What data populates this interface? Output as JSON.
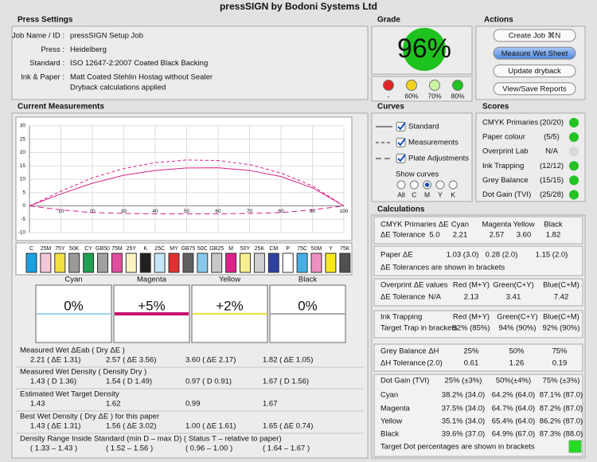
{
  "title": "pressSIGN by Bodoni Systems Ltd",
  "press_settings": {
    "title": "Press Settings",
    "rows": [
      {
        "label": "Job Name / ID :",
        "value": "pressSIGN Setup Job"
      },
      {
        "label": "Press :",
        "value": "Heidelberg"
      },
      {
        "label": "Standard :",
        "value": "ISO 12647-2:2007 Coated Black Backing"
      },
      {
        "label": "Ink & Paper :",
        "value": "Matt Coated Stehlin Hostag without Sealer"
      }
    ],
    "note": "Dryback calculations applied"
  },
  "grade": {
    "title": "Grade",
    "value": "96%",
    "color": "#1ec21e",
    "levels": [
      {
        "label": "-",
        "color": "#e32222"
      },
      {
        "label": "60%",
        "color": "#f5d21a"
      },
      {
        "label": "70%",
        "color": "#c9f5a3"
      },
      {
        "label": "80%",
        "color": "#22c322"
      }
    ]
  },
  "actions": {
    "title": "Actions",
    "buttons": [
      "Create Job ⌘N",
      "Measure Wet Sheet",
      "Update dryback",
      "View/Save Reports"
    ],
    "default_button": 1
  },
  "measurements": {
    "title": "Current Measurements",
    "chart": {
      "type": "line",
      "xlim": [
        0,
        100
      ],
      "ylim": [
        -10,
        30
      ],
      "xticks": [
        10,
        20,
        30,
        40,
        50,
        60,
        70,
        80,
        90,
        100
      ],
      "yticks": [
        30,
        25,
        20,
        15,
        10,
        5,
        0,
        -5,
        -10
      ],
      "grid": true,
      "x": [
        0,
        10,
        20,
        30,
        40,
        50,
        60,
        70,
        80,
        90,
        100
      ],
      "series": [
        {
          "color": "#d6228a",
          "dash": "solid",
          "values": [
            0,
            4.5,
            8.5,
            11.5,
            13.3,
            14.2,
            14.3,
            13.3,
            11,
            6.8,
            0
          ]
        },
        {
          "color": "#d6228a",
          "dash": "dashed",
          "values": [
            0,
            5.5,
            10.5,
            14,
            16.2,
            17.2,
            17,
            15.5,
            12.3,
            7.5,
            0
          ]
        },
        {
          "color": "#d6228a",
          "dash": "dashdot",
          "values": [
            0,
            -1.5,
            -2.5,
            -2.8,
            -3,
            -3,
            -3,
            -2.8,
            -2.5,
            -1.5,
            0
          ]
        }
      ]
    },
    "patches": {
      "labels": [
        "C",
        "25M",
        "75Y",
        "50K",
        "CY",
        "GB50",
        "75M",
        "25Y",
        "K",
        "25C",
        "MY",
        "GB75",
        "50C",
        "GB25",
        "M",
        "50Y",
        "25K",
        "CM",
        "P",
        "75C",
        "50M",
        "Y",
        "75K"
      ],
      "colors": [
        "#1aa0e0",
        "#f4c6dc",
        "#f3e040",
        "#9a9a9a",
        "#20a050",
        "#a0a0a0",
        "#e04f99",
        "#fbf4c0",
        "#202020",
        "#c4e6f6",
        "#e03030",
        "#606060",
        "#86c8ec",
        "#c8c8c8",
        "#e0208a",
        "#f8ee90",
        "#d0d0d0",
        "#3040a0",
        "#ffffff",
        "#44b0e6",
        "#ee90c0",
        "#f8e818",
        "#505050"
      ]
    },
    "gauges": [
      {
        "name": "Cyan",
        "label": "0%",
        "value": 0,
        "color": "#3ab0e0"
      },
      {
        "name": "Magenta",
        "label": "+5%",
        "value": 5,
        "color": "#c8126e"
      },
      {
        "name": "Yellow",
        "label": "+2%",
        "value": 2,
        "color": "#f2e04a"
      },
      {
        "name": "Black",
        "label": "0%",
        "value": 0,
        "color": "#555555"
      }
    ],
    "rows": [
      {
        "label": "Measured Wet ΔEab ( Dry ΔE )",
        "values": [
          "2.21 ( ΔE 1.31)",
          "2.57 ( ΔE 3.56)",
          "3.60 ( ΔE 2.17)",
          "1.82 ( ΔE 1.05)"
        ]
      },
      {
        "label": "Measured Wet Density ( Density Dry )",
        "values": [
          "1.43 ( D 1.36)",
          "1.54 ( D 1.49)",
          "0.97 ( D 0.91)",
          "1.67 ( D 1.56)"
        ]
      },
      {
        "label": "Estimated Wet Target Density",
        "values": [
          "1.43",
          "1.62",
          "0.99",
          "1.67"
        ]
      },
      {
        "label": "Best Wet Density ( Dry ΔE ) for this paper",
        "values": [
          "1.43 ( ΔE 1.31)",
          "1.56 ( ΔE 3.02)",
          "1.00 ( ΔE 1.61)",
          "1.65 ( ΔE 0.74)"
        ]
      },
      {
        "label": "Density Range Inside Standard (min D – max D)   ( Status T – relative to paper)",
        "values": [
          "( 1.33 – 1.43 )",
          "( 1.52 – 1.56 )",
          "( 0.96 – 1.00 )",
          "( 1.64 – 1.67 )"
        ]
      }
    ]
  },
  "curves": {
    "title": "Curves",
    "legend": [
      {
        "label": "Standard",
        "dash": "solid"
      },
      {
        "label": "Measurements",
        "dash": "dashed"
      },
      {
        "label": "Plate Adjustments",
        "dash": "dashdot"
      }
    ],
    "show_curves": "Show curves",
    "options": [
      "All",
      "C",
      "M",
      "Y",
      "K"
    ],
    "selected": 2
  },
  "scores": {
    "title": "Scores",
    "rows": [
      {
        "label": "CMYK Primaries",
        "value": "(20/20)",
        "color": "#22c322"
      },
      {
        "label": "Paper colour",
        "value": "(5/5)",
        "color": "#22c322"
      },
      {
        "label": "Overprint Lab",
        "value": "N/A",
        "color": "#d8d8d8"
      },
      {
        "label": "Ink Trapping",
        "value": "(12/12)",
        "color": "#22c322"
      },
      {
        "label": "Grey Balance",
        "value": "(15/15)",
        "color": "#22c322"
      },
      {
        "label": "Dot Gain (TVI)",
        "value": "(25/28)",
        "color": "#22c322"
      }
    ]
  },
  "calculations": {
    "title": "Calculations",
    "alert_color": "#e02020",
    "sections": [
      {
        "rows": [
          {
            "label": "CMYK Primaries ΔE",
            "values": [
              "Cyan",
              "Magenta",
              "Yellow",
              "Black"
            ]
          },
          {
            "label": "ΔE Tolerance",
            "tolerance": "5.0",
            "values": [
              "2.21",
              "2.57",
              "3.60",
              "1.82"
            ]
          }
        ]
      },
      {
        "rows": [
          {
            "label": "Paper ΔE",
            "values": [
              "1.03 (3.0)",
              "0.28 (2.0)",
              "1.15 (2.0)"
            ]
          }
        ],
        "note": "ΔE Tolerances are shown in brackets"
      },
      {
        "rows": [
          {
            "label": "Overprint ΔE values",
            "values": [
              "Red (M+Y)",
              "Green(C+Y)",
              "Blue(C+M)"
            ]
          },
          {
            "label": "ΔE Tolerance",
            "tolerance": "N/A",
            "values": [
              "2.13",
              "3.41",
              "7.42"
            ]
          }
        ]
      },
      {
        "rows": [
          {
            "label": "Ink Trapping",
            "values": [
              "Red (M+Y)",
              "Green(C+Y)",
              "Blue(C+M)"
            ]
          },
          {
            "label": "Target Trap in brackets",
            "values": [
              "92% (85%)",
              "94% (90%)",
              "92% (90%)"
            ]
          }
        ]
      },
      {
        "rows": [
          {
            "label": "Grey Balance ΔH",
            "values": [
              "25%",
              "50%",
              "75%"
            ]
          },
          {
            "label": "ΔH Tolerance",
            "tolerance": "(2.0)",
            "values": [
              "0.61",
              "1.26",
              "0.19"
            ]
          }
        ]
      },
      {
        "rows": [
          {
            "label": "Dot Gain (TVI)",
            "values": [
              "25% (±3%)",
              "50%(±4%)",
              "75% (±3%)"
            ]
          },
          {
            "label": "Cyan",
            "values": [
              "38.2% (34.0)",
              "64.2% (64.0)",
              "87.1% (87.0)"
            ],
            "alert": [
              0
            ]
          },
          {
            "label": "Magenta",
            "values": [
              "37.5% (34.0)",
              "64.7% (64.0)",
              "87.2% (87.0)"
            ],
            "alert": [
              0
            ]
          },
          {
            "label": "Yellow",
            "values": [
              "35.1% (34.0)",
              "65.4% (64.0)",
              "86.2% (87.0)"
            ]
          },
          {
            "label": "Black",
            "values": [
              "39.6% (37.0)",
              "64.9% (67.0)",
              "87.3% (88.0)"
            ]
          }
        ],
        "note": "Target Dot percentages are shown in brackets",
        "note_color": "#22dd22"
      }
    ]
  }
}
